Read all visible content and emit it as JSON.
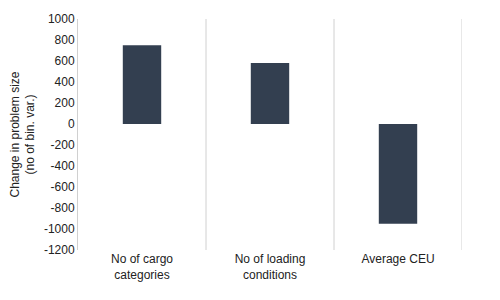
{
  "chart_data": {
    "type": "bar",
    "y_label": "Change in problem size (no of bin. var.)",
    "categories": [
      "No of cargo categories",
      "No of loading conditions",
      "Average CEU"
    ],
    "values": [
      750,
      580,
      -950
    ],
    "color": "#333f50",
    "ylim": [
      -1200,
      1000
    ],
    "yticks": [
      -1200,
      -1000,
      -800,
      -600,
      -400,
      -200,
      0,
      200,
      400,
      600,
      800,
      1000
    ],
    "grid": true
  }
}
